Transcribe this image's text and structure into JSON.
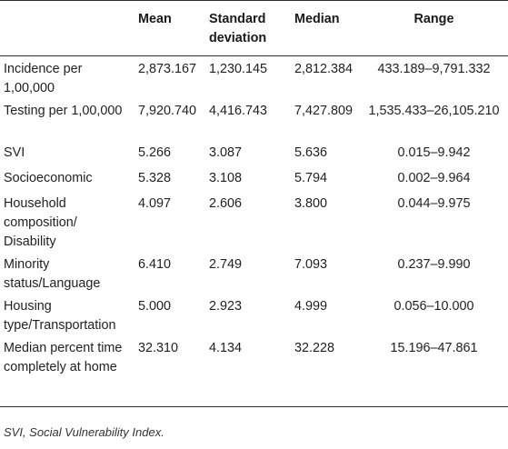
{
  "table": {
    "headers": [
      "",
      "Mean",
      "Standard deviation",
      "Median",
      "Range"
    ],
    "rows": [
      {
        "name": "Incidence per 1,00,000",
        "mean": "2,873.167",
        "sd": "1,230.145",
        "median": "2,812.384",
        "range": "433.189–9,791.332"
      },
      {
        "name": "Testing per 1,00,000",
        "mean": "7,920.740",
        "sd": "4,416.743",
        "median": "7,427.809",
        "range": "1,535.433–26,105.210"
      },
      {
        "name": "SVI",
        "mean": "5.266",
        "sd": "3.087",
        "median": "5.636",
        "range": "0.015–9.942"
      },
      {
        "name": "Socioeconomic",
        "mean": "5.328",
        "sd": "3.108",
        "median": "5.794",
        "range": "0.002–9.964"
      },
      {
        "name": "Household composition/ Disability",
        "mean": "4.097",
        "sd": "2.606",
        "median": "3.800",
        "range": "0.044–9.975"
      },
      {
        "name": "Minority status/Language",
        "mean": "6.410",
        "sd": "2.749",
        "median": "7.093",
        "range": "0.237–9.990"
      },
      {
        "name": "Housing type/Transportation",
        "mean": "5.000",
        "sd": "2.923",
        "median": "4.999",
        "range": "0.056–10.000"
      },
      {
        "name": "Median percent time completely at home",
        "mean": "32.310",
        "sd": "4.134",
        "median": "32.228",
        "range": "15.196–47.861"
      }
    ]
  },
  "footnote": "SVI, Social Vulnerability Index."
}
